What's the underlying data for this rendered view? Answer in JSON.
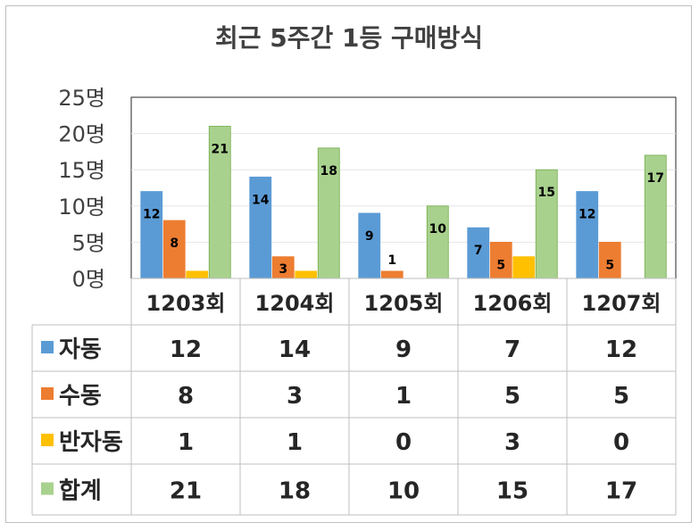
{
  "chart_data": {
    "type": "bar",
    "title": "최근 5주간 1등 구매방식",
    "categories": [
      "1203회",
      "1204회",
      "1205회",
      "1206회",
      "1207회"
    ],
    "yticks": [
      "0명",
      "5명",
      "10명",
      "15명",
      "20명",
      "25명"
    ],
    "ylim": [
      0,
      25
    ],
    "grid": true,
    "series": [
      {
        "name": "자동",
        "color": "#5b9bd5",
        "values": [
          12,
          14,
          9,
          7,
          12
        ],
        "labels": [
          "12",
          "14",
          "9",
          "7",
          "12"
        ],
        "table": [
          "12",
          "14",
          "9",
          "7",
          "12"
        ]
      },
      {
        "name": "수동",
        "color": "#ed7d31",
        "values": [
          8,
          3,
          1,
          5,
          5
        ],
        "labels": [
          "8",
          "3",
          "1",
          "5",
          "5"
        ],
        "table": [
          "8",
          "3",
          "1",
          "5",
          "5"
        ]
      },
      {
        "name": "반자동",
        "color": "#ffc000",
        "values": [
          1,
          1,
          0,
          3,
          0
        ],
        "labels": [
          "",
          "",
          "",
          "",
          ""
        ],
        "table": [
          "1",
          "1",
          "0",
          "3",
          "0"
        ]
      },
      {
        "name": "합계",
        "color": "#a9d18e",
        "values": [
          21,
          18,
          10,
          15,
          17
        ],
        "labels": [
          "21",
          "18",
          "10",
          "15",
          "17"
        ],
        "table": [
          "21",
          "18",
          "10",
          "15",
          "17"
        ]
      }
    ],
    "legend": "data table"
  }
}
